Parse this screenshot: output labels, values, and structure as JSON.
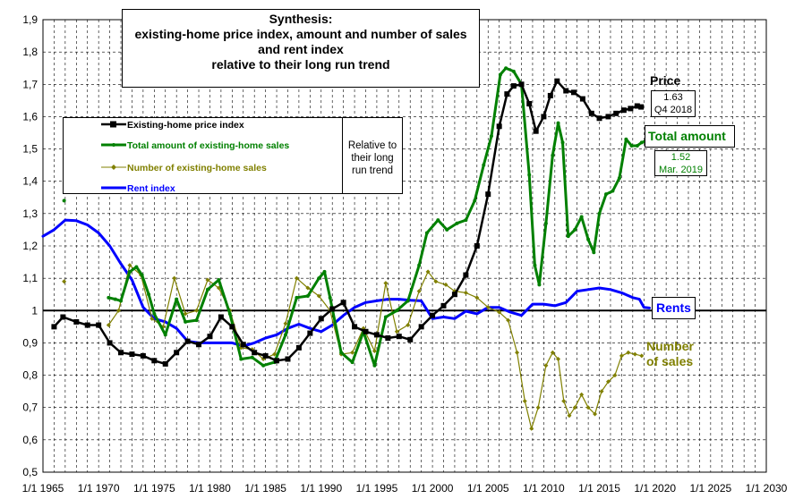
{
  "chart_data": {
    "type": "line",
    "title_lines": [
      "Synthesis:",
      "existing-home price index, amount and number of sales",
      "and rent index",
      "relative to their long run trend"
    ],
    "ylim": [
      0.5,
      1.9
    ],
    "yticks": [
      0.5,
      0.6,
      0.7,
      0.8,
      0.9,
      1,
      1.1,
      1.2,
      1.3,
      1.4,
      1.5,
      1.6,
      1.7,
      1.8,
      1.9
    ],
    "ytick_labels": [
      "0,5",
      "0,6",
      "0,7",
      "0,8",
      "0,9",
      "1",
      "1,1",
      "1,2",
      "1,3",
      "1,4",
      "1,5",
      "1,6",
      "1,7",
      "1,8",
      "1,9"
    ],
    "xlim": [
      1965,
      2030
    ],
    "xtick_labels": [
      "1/1 1965",
      "1/1 1970",
      "1/1 1975",
      "1/1 1980",
      "1/1 1985",
      "1/1 1990",
      "1/1 1995",
      "1/1 2000",
      "1/1 2005",
      "1/1 2010",
      "1/1 2015",
      "1/1 2020",
      "1/1 2025",
      "1/1 2030"
    ],
    "xticks": [
      1965,
      1970,
      1975,
      1980,
      1985,
      1990,
      1995,
      2000,
      2005,
      2010,
      2015,
      2020,
      2025,
      2030
    ],
    "grid": true,
    "reference_line": 1,
    "legend_position": "upper-left",
    "note": "Relative to their long run trend",
    "series": [
      {
        "name": "Existing-home price index",
        "color": "#000000",
        "marker": "square",
        "points": [
          [
            1966,
            0.95
          ],
          [
            1966.8,
            0.98
          ],
          [
            1968,
            0.965
          ],
          [
            1969,
            0.955
          ],
          [
            1970,
            0.955
          ],
          [
            1971,
            0.9
          ],
          [
            1972,
            0.87
          ],
          [
            1973,
            0.865
          ],
          [
            1974,
            0.86
          ],
          [
            1975,
            0.845
          ],
          [
            1976,
            0.835
          ],
          [
            1977,
            0.87
          ],
          [
            1978,
            0.905
          ],
          [
            1979,
            0.895
          ],
          [
            1980,
            0.92
          ],
          [
            1981,
            0.98
          ],
          [
            1982,
            0.95
          ],
          [
            1983,
            0.895
          ],
          [
            1984,
            0.87
          ],
          [
            1985,
            0.86
          ],
          [
            1986,
            0.845
          ],
          [
            1987,
            0.85
          ],
          [
            1988,
            0.885
          ],
          [
            1989,
            0.93
          ],
          [
            1990,
            0.975
          ],
          [
            1991,
            1.005
          ],
          [
            1992,
            1.025
          ],
          [
            1993,
            0.95
          ],
          [
            1994,
            0.935
          ],
          [
            1995,
            0.925
          ],
          [
            1996,
            0.915
          ],
          [
            1997,
            0.92
          ],
          [
            1998,
            0.91
          ],
          [
            1999,
            0.95
          ],
          [
            2000,
            0.985
          ],
          [
            2001,
            1.015
          ],
          [
            2002,
            1.05
          ],
          [
            2003,
            1.11
          ],
          [
            2004,
            1.2
          ],
          [
            2005,
            1.36
          ],
          [
            2006,
            1.57
          ],
          [
            2006.7,
            1.67
          ],
          [
            2007.3,
            1.695
          ],
          [
            2008,
            1.7
          ],
          [
            2008.7,
            1.64
          ],
          [
            2009.3,
            1.555
          ],
          [
            2010,
            1.6
          ],
          [
            2010.6,
            1.665
          ],
          [
            2011.2,
            1.71
          ],
          [
            2012,
            1.68
          ],
          [
            2012.7,
            1.675
          ],
          [
            2013.5,
            1.655
          ],
          [
            2014.3,
            1.61
          ],
          [
            2015,
            1.595
          ],
          [
            2015.8,
            1.6
          ],
          [
            2016.5,
            1.61
          ],
          [
            2017.2,
            1.62
          ],
          [
            2017.8,
            1.625
          ],
          [
            2018.4,
            1.633
          ],
          [
            2018.75,
            1.63
          ]
        ]
      },
      {
        "name": "Total amount of existing-home sales",
        "color": "#008000",
        "marker": "dot",
        "segments": [
          [
            [
              1966.9,
              1.34
            ]
          ],
          [
            [
              1970.9,
              1.04
            ],
            [
              1971.5,
              1.035
            ],
            [
              1972,
              1.03
            ],
            [
              1972.8,
              1.12
            ],
            [
              1973.4,
              1.135
            ],
            [
              1973.9,
              1.11
            ],
            [
              1974.5,
              1.05
            ],
            [
              1975,
              0.99
            ],
            [
              1976,
              0.925
            ],
            [
              1977,
              1.035
            ],
            [
              1977.8,
              0.965
            ],
            [
              1978.8,
              0.97
            ],
            [
              1979.8,
              1.065
            ],
            [
              1980.8,
              1.095
            ],
            [
              1981.8,
              0.99
            ],
            [
              1982.8,
              0.85
            ],
            [
              1983.8,
              0.855
            ],
            [
              1984.8,
              0.83
            ],
            [
              1985.8,
              0.84
            ],
            [
              1986.8,
              0.925
            ],
            [
              1987.8,
              1.04
            ],
            [
              1988.8,
              1.045
            ],
            [
              1989.8,
              1.1
            ],
            [
              1990.3,
              1.12
            ],
            [
              1990.8,
              1.04
            ],
            [
              1991.8,
              0.87
            ],
            [
              1992.8,
              0.84
            ],
            [
              1993.8,
              0.935
            ],
            [
              1994.8,
              0.83
            ],
            [
              1995.8,
              0.98
            ],
            [
              1996.8,
              1.0
            ],
            [
              1997.8,
              1.03
            ],
            [
              1998.8,
              1.14
            ],
            [
              1999.5,
              1.24
            ],
            [
              2000.5,
              1.28
            ],
            [
              2001.3,
              1.25
            ],
            [
              2002.2,
              1.27
            ],
            [
              2003,
              1.28
            ],
            [
              2003.8,
              1.34
            ],
            [
              2004.6,
              1.45
            ],
            [
              2005.3,
              1.54
            ],
            [
              2006.1,
              1.73
            ],
            [
              2006.6,
              1.75
            ],
            [
              2007.3,
              1.74
            ],
            [
              2008,
              1.7
            ],
            [
              2008.7,
              1.42
            ],
            [
              2009.2,
              1.14
            ],
            [
              2009.6,
              1.08
            ],
            [
              2010.2,
              1.27
            ],
            [
              2010.8,
              1.48
            ],
            [
              2011.3,
              1.58
            ],
            [
              2011.7,
              1.52
            ],
            [
              2012.2,
              1.23
            ],
            [
              2012.8,
              1.25
            ],
            [
              2013.4,
              1.29
            ],
            [
              2014,
              1.22
            ],
            [
              2014.5,
              1.18
            ],
            [
              2015,
              1.3
            ],
            [
              2015.6,
              1.36
            ],
            [
              2016.2,
              1.37
            ],
            [
              2016.8,
              1.41
            ],
            [
              2017.4,
              1.53
            ],
            [
              2017.9,
              1.51
            ],
            [
              2018.4,
              1.51
            ],
            [
              2018.8,
              1.52
            ],
            [
              2019.2,
              1.525
            ]
          ]
        ]
      },
      {
        "name": "Number of existing-home sales",
        "color": "#808000",
        "marker": "small-diamond",
        "segments": [
          [
            [
              1966.9,
              1.09
            ]
          ],
          [
            [
              1970.9,
              0.955
            ],
            [
              1971.8,
              1.0
            ],
            [
              1972.8,
              1.14
            ],
            [
              1973.8,
              1.11
            ],
            [
              1974.8,
              0.975
            ],
            [
              1975.8,
              0.95
            ],
            [
              1976.8,
              1.1
            ],
            [
              1977.8,
              0.99
            ],
            [
              1978.8,
              1.0
            ],
            [
              1979.8,
              1.095
            ],
            [
              1980.8,
              1.07
            ],
            [
              1981.8,
              1.0
            ],
            [
              1982.8,
              0.885
            ],
            [
              1983.8,
              0.88
            ],
            [
              1984.8,
              0.85
            ],
            [
              1985.8,
              0.865
            ],
            [
              1986.8,
              0.96
            ],
            [
              1987.8,
              1.1
            ],
            [
              1988.8,
              1.07
            ],
            [
              1989.8,
              1.045
            ],
            [
              1990.8,
              1.0
            ],
            [
              1991.8,
              0.865
            ],
            [
              1992.8,
              0.87
            ],
            [
              1993.8,
              0.945
            ],
            [
              1994.8,
              0.875
            ],
            [
              1995.8,
              1.085
            ],
            [
              1996.8,
              0.935
            ],
            [
              1997.8,
              0.955
            ],
            [
              1998.8,
              1.06
            ],
            [
              1999.6,
              1.12
            ],
            [
              2000.3,
              1.09
            ],
            [
              2001.2,
              1.08
            ],
            [
              2002,
              1.06
            ],
            [
              2003,
              1.055
            ],
            [
              2004,
              1.04
            ],
            [
              2005,
              1.01
            ],
            [
              2006,
              0.995
            ],
            [
              2006.8,
              0.97
            ],
            [
              2007.6,
              0.87
            ],
            [
              2008.3,
              0.72
            ],
            [
              2008.9,
              0.635
            ],
            [
              2009.5,
              0.7
            ],
            [
              2010.2,
              0.83
            ],
            [
              2010.8,
              0.87
            ],
            [
              2011.3,
              0.85
            ],
            [
              2011.8,
              0.72
            ],
            [
              2012.3,
              0.675
            ],
            [
              2012.8,
              0.7
            ],
            [
              2013.4,
              0.74
            ],
            [
              2014,
              0.7
            ],
            [
              2014.6,
              0.68
            ],
            [
              2015.2,
              0.75
            ],
            [
              2015.8,
              0.78
            ],
            [
              2016.4,
              0.8
            ],
            [
              2017,
              0.86
            ],
            [
              2017.6,
              0.87
            ],
            [
              2018.2,
              0.865
            ],
            [
              2018.8,
              0.86
            ]
          ]
        ]
      },
      {
        "name": "Rent index",
        "color": "#0000ff",
        "marker": "none",
        "points": [
          [
            1965,
            1.23
          ],
          [
            1966,
            1.25
          ],
          [
            1967,
            1.28
          ],
          [
            1968,
            1.278
          ],
          [
            1969,
            1.265
          ],
          [
            1970,
            1.24
          ],
          [
            1971,
            1.2
          ],
          [
            1972,
            1.145
          ],
          [
            1973,
            1.095
          ],
          [
            1974,
            1.01
          ],
          [
            1975,
            0.975
          ],
          [
            1976,
            0.965
          ],
          [
            1977,
            0.945
          ],
          [
            1978,
            0.905
          ],
          [
            1979,
            0.9
          ],
          [
            1980,
            0.9
          ],
          [
            1981,
            0.9
          ],
          [
            1982,
            0.9
          ],
          [
            1983,
            0.89
          ],
          [
            1984,
            0.9
          ],
          [
            1985,
            0.915
          ],
          [
            1986,
            0.925
          ],
          [
            1987,
            0.945
          ],
          [
            1988,
            0.958
          ],
          [
            1989,
            0.945
          ],
          [
            1990,
            0.935
          ],
          [
            1991,
            0.955
          ],
          [
            1992,
            0.985
          ],
          [
            1993,
            1.01
          ],
          [
            1994,
            1.025
          ],
          [
            1995,
            1.03
          ],
          [
            1996,
            1.035
          ],
          [
            1997,
            1.035
          ],
          [
            1998,
            1.032
          ],
          [
            1999,
            1.03
          ],
          [
            2000,
            0.975
          ],
          [
            2001,
            0.98
          ],
          [
            2002,
            0.975
          ],
          [
            2003,
            0.998
          ],
          [
            2004,
            0.99
          ],
          [
            2005,
            1.01
          ],
          [
            2006,
            1.01
          ],
          [
            2007,
            0.995
          ],
          [
            2008,
            0.985
          ],
          [
            2009,
            1.02
          ],
          [
            2010,
            1.02
          ],
          [
            2011,
            1.015
          ],
          [
            2012,
            1.025
          ],
          [
            2013,
            1.06
          ],
          [
            2014,
            1.065
          ],
          [
            2015,
            1.07
          ],
          [
            2016,
            1.065
          ],
          [
            2017,
            1.055
          ],
          [
            2018,
            1.04
          ],
          [
            2018.6,
            1.035
          ],
          [
            2019,
            1.01
          ],
          [
            2019.5,
            1.008
          ]
        ]
      }
    ],
    "annotations": {
      "price": {
        "label": "Price",
        "value": "1.63",
        "date": "Q4 2018"
      },
      "total_amount": {
        "label": "Total amount",
        "value": "1.52",
        "date": "Mar. 2019"
      },
      "rents": {
        "label": "Rents"
      },
      "number_of_sales": {
        "label_line1": "Number",
        "label_line2": "of sales"
      }
    }
  }
}
